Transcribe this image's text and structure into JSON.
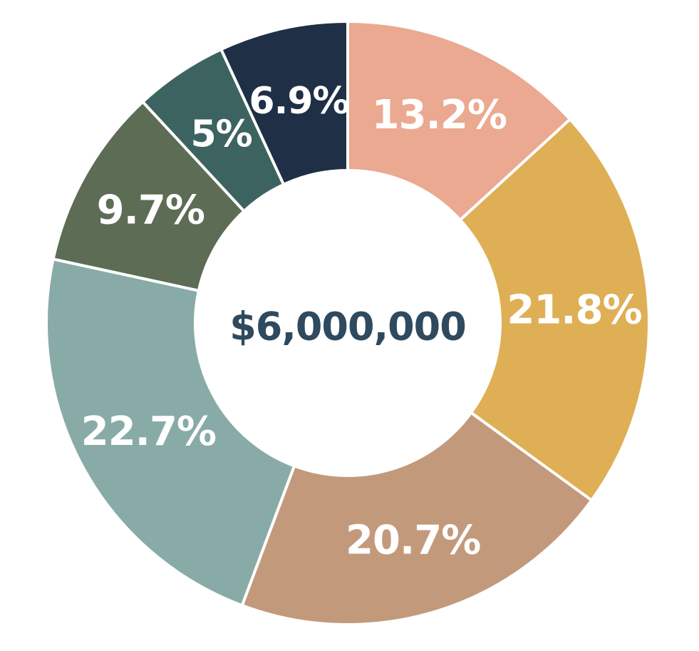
{
  "chart_data": {
    "type": "pie",
    "donut": true,
    "center_label": "$6,000,000",
    "start_angle_deg": 0,
    "direction": "clockwise",
    "slices": [
      {
        "label": "13.2%",
        "value": 13.2,
        "color": "#eaa990"
      },
      {
        "label": "21.8%",
        "value": 21.8,
        "color": "#dfaf56"
      },
      {
        "label": "20.7%",
        "value": 20.7,
        "color": "#c3997c"
      },
      {
        "label": "22.7%",
        "value": 22.7,
        "color": "#89aba8"
      },
      {
        "label": "9.7%",
        "value": 9.7,
        "color": "#5d6c55"
      },
      {
        "label": "5%",
        "value": 5.0,
        "color": "#3d6360"
      },
      {
        "label": "6.9%",
        "value": 6.9,
        "color": "#1f2f45"
      }
    ],
    "legend": "none",
    "grid": false
  }
}
